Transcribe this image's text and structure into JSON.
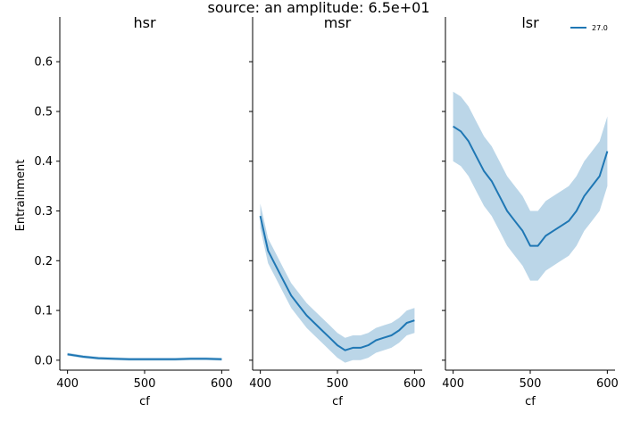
{
  "figure": {
    "suptitle": "source: an amplitude: 6.5e+01",
    "ylabel": "Entrainment",
    "xlabel": "cf"
  },
  "colors": {
    "line": "#1f77b4",
    "band": "#1f77b4",
    "axis": "#000000"
  },
  "chart_data": [
    {
      "type": "line",
      "title": "hsr",
      "xlabel": "cf",
      "ylabel": "Entrainment",
      "xlim": [
        390,
        610
      ],
      "ylim": [
        -0.02,
        0.69
      ],
      "xticks": [
        400,
        500,
        600
      ],
      "yticks": [
        0.0,
        0.1,
        0.2,
        0.3,
        0.4,
        0.5,
        0.6
      ],
      "grid": false,
      "legend": null,
      "series": [
        {
          "x": [
            400,
            420,
            440,
            460,
            480,
            500,
            520,
            540,
            560,
            580,
            600
          ],
          "y": [
            0.012,
            0.007,
            0.004,
            0.003,
            0.002,
            0.002,
            0.002,
            0.002,
            0.003,
            0.003,
            0.002
          ],
          "band": 0.003
        }
      ]
    },
    {
      "type": "line",
      "title": "msr",
      "xlabel": "cf",
      "ylabel": "",
      "xlim": [
        390,
        610
      ],
      "ylim": [
        -0.02,
        0.69
      ],
      "xticks": [
        400,
        500,
        600
      ],
      "yticks": [
        0.0,
        0.1,
        0.2,
        0.3,
        0.4,
        0.5,
        0.6
      ],
      "grid": false,
      "legend": null,
      "series": [
        {
          "x": [
            400,
            410,
            420,
            430,
            440,
            450,
            460,
            470,
            480,
            490,
            500,
            510,
            520,
            530,
            540,
            550,
            560,
            570,
            580,
            590,
            600
          ],
          "y": [
            0.29,
            0.22,
            0.19,
            0.16,
            0.13,
            0.11,
            0.09,
            0.075,
            0.06,
            0.045,
            0.03,
            0.02,
            0.025,
            0.025,
            0.03,
            0.04,
            0.045,
            0.05,
            0.06,
            0.075,
            0.08
          ],
          "band": 0.025
        }
      ]
    },
    {
      "type": "line",
      "title": "lsr",
      "xlabel": "cf",
      "ylabel": "",
      "xlim": [
        390,
        610
      ],
      "ylim": [
        -0.02,
        0.69
      ],
      "xticks": [
        400,
        500,
        600
      ],
      "yticks": [
        0.0,
        0.1,
        0.2,
        0.3,
        0.4,
        0.5,
        0.6
      ],
      "grid": false,
      "legend": "top-right",
      "series": [
        {
          "name": "27.0",
          "x": [
            400,
            410,
            420,
            430,
            440,
            450,
            460,
            470,
            480,
            490,
            500,
            510,
            520,
            530,
            540,
            550,
            560,
            570,
            580,
            590,
            600
          ],
          "y": [
            0.47,
            0.46,
            0.44,
            0.41,
            0.38,
            0.36,
            0.33,
            0.3,
            0.28,
            0.26,
            0.23,
            0.23,
            0.25,
            0.26,
            0.27,
            0.28,
            0.3,
            0.33,
            0.35,
            0.37,
            0.42
          ],
          "band": 0.07
        }
      ]
    }
  ]
}
